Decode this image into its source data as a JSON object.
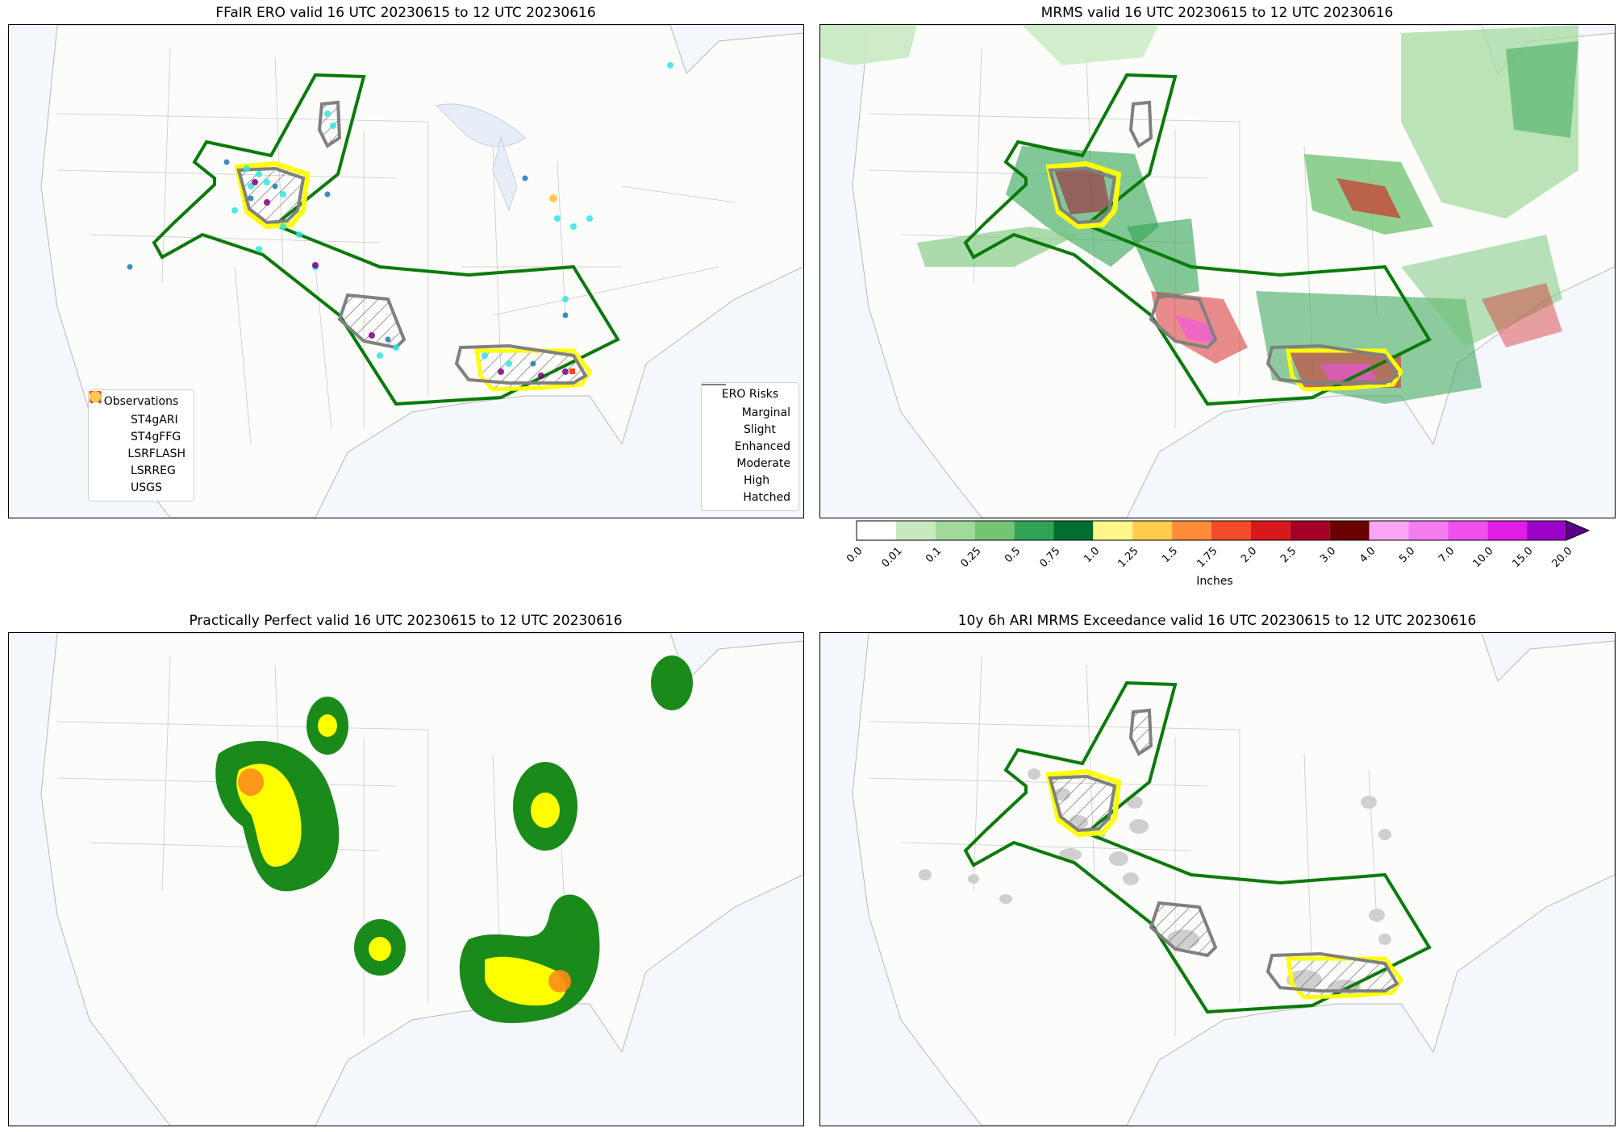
{
  "panels": [
    {
      "id": "ero",
      "title": "FFaIR ERO valid 16 UTC 20230615 to 12 UTC 20230616"
    },
    {
      "id": "mrms",
      "title": "MRMS valid 16 UTC 20230615 to 12 UTC 20230616"
    },
    {
      "id": "pp",
      "title": "Practically Perfect valid 16 UTC 20230615 to 12 UTC 20230616"
    },
    {
      "id": "ari",
      "title": "10y 6h ARI MRMS Exceedance valid 16 UTC 20230615 to 12 UTC 20230616"
    }
  ],
  "observations_legend": {
    "title": "Observations",
    "items": [
      {
        "label": "ST4gARI",
        "color": "#1f77b4",
        "icon": "star-icon"
      },
      {
        "label": "ST4gFFG",
        "color": "#2ee6e6",
        "icon": "star-icon"
      },
      {
        "label": "LSRFLASH",
        "color": "#800080",
        "icon": "cross-icon"
      },
      {
        "label": "LSRREG",
        "color": "#ff4500",
        "icon": "square-icon"
      },
      {
        "label": "USGS",
        "color": "#ffc94d",
        "icon": "circle-icon"
      }
    ]
  },
  "ero_legend": {
    "title": "ERO Risks",
    "items": [
      {
        "label": "Marginal",
        "color": "#008000"
      },
      {
        "label": "Slight",
        "color": "#ffff00"
      },
      {
        "label": "Enhanced",
        "color": "#ff7f0e"
      },
      {
        "label": "Moderate",
        "color": "#e00000"
      },
      {
        "label": "High",
        "color": "#d400d4"
      },
      {
        "label": "Hatched",
        "color": "#808080"
      }
    ]
  },
  "colorbar": {
    "label": "Inches",
    "ticks": [
      "0.0",
      "0.01",
      "0.1",
      "0.25",
      "0.5",
      "0.75",
      "1.0",
      "1.25",
      "1.5",
      "1.75",
      "2.0",
      "2.5",
      "3.0",
      "4.0",
      "5.0",
      "7.0",
      "10.0",
      "15.0",
      "20.0"
    ],
    "colors": [
      "#ffffff",
      "#c7e9c0",
      "#a1d99b",
      "#74c476",
      "#31a354",
      "#006d2c",
      "#fff78a",
      "#ffcc4d",
      "#ff8c39",
      "#f24a2a",
      "#d7191c",
      "#a50026",
      "#6a0000",
      "#f9a7f5",
      "#f57cf0",
      "#f050ec",
      "#e01ee6",
      "#9b00c8"
    ],
    "extend_color": "#5a008c"
  }
}
